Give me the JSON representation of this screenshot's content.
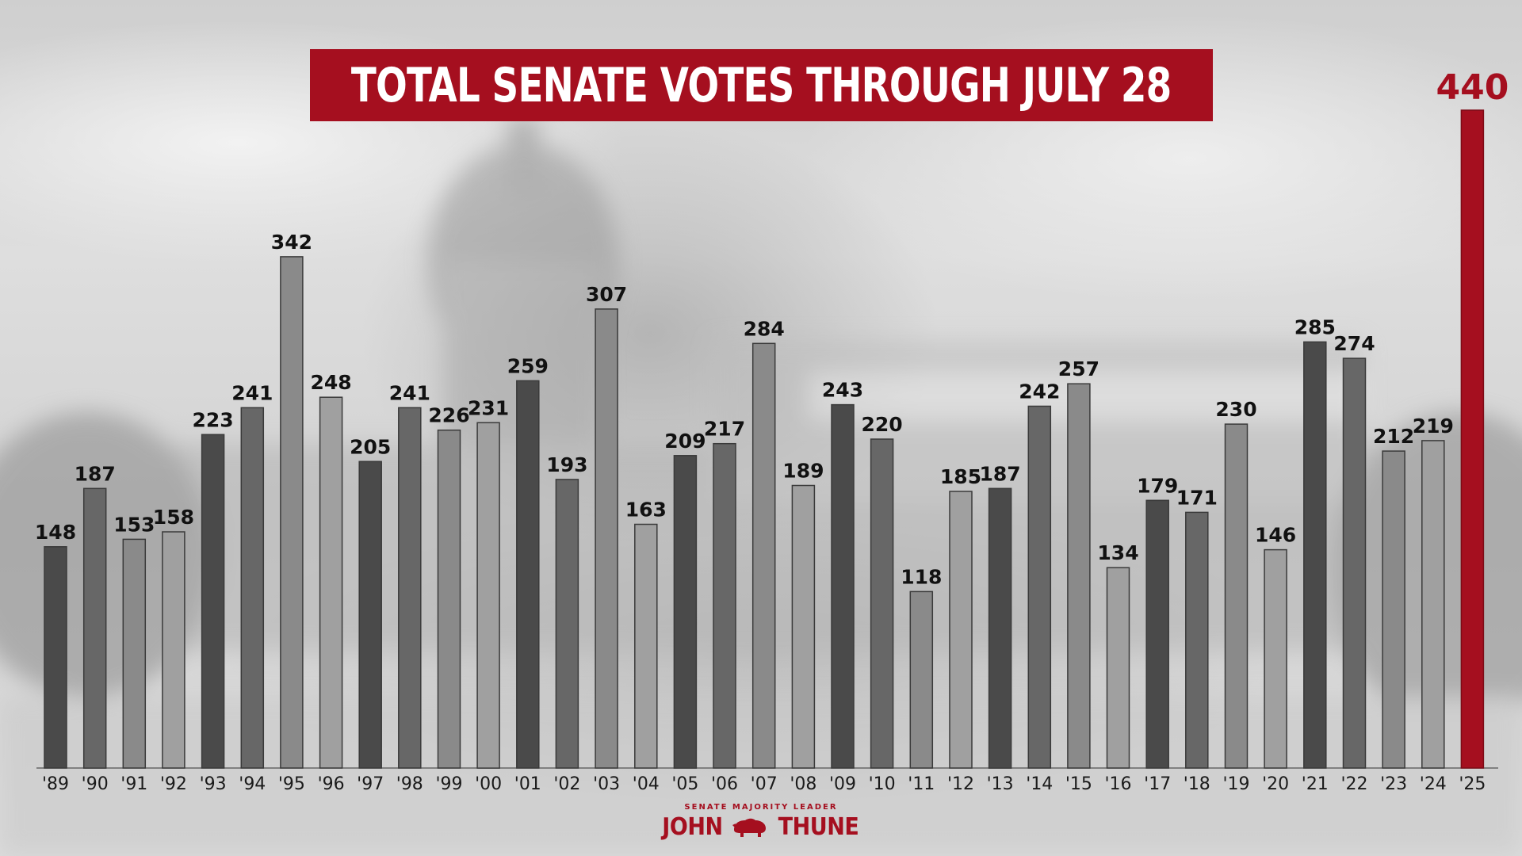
{
  "colors": {
    "accent": "#a50f1f",
    "bar_dark": "#4a4a4a",
    "bar_mid": "#676767",
    "bar_light": "#8a8a8a",
    "bar_lighter": "#a0a0a0"
  },
  "title": "TOTAL SENATE VOTES THROUGH JULY 28",
  "logo": {
    "subtitle": "SENATE MAJORITY LEADER",
    "first": "JOHN",
    "last": "THUNE",
    "icon": "bison-icon"
  },
  "chart_data": {
    "type": "bar",
    "title": "TOTAL SENATE VOTES THROUGH JULY 28",
    "xlabel": "",
    "ylabel": "",
    "ylim": [
      0,
      440
    ],
    "grid": false,
    "legend": "none",
    "categories": [
      "'89",
      "'90",
      "'91",
      "'92",
      "'93",
      "'94",
      "'95",
      "'96",
      "'97",
      "'98",
      "'99",
      "'00",
      "'01",
      "'02",
      "'03",
      "'04",
      "'05",
      "'06",
      "'07",
      "'08",
      "'09",
      "'10",
      "'11",
      "'12",
      "'13",
      "'14",
      "'15",
      "'16",
      "'17",
      "'18",
      "'19",
      "'20",
      "'21",
      "'22",
      "'23",
      "'24",
      "'25"
    ],
    "values": [
      148,
      187,
      153,
      158,
      223,
      241,
      342,
      248,
      205,
      241,
      226,
      231,
      259,
      193,
      307,
      163,
      209,
      217,
      284,
      189,
      243,
      220,
      118,
      185,
      187,
      242,
      257,
      134,
      179,
      171,
      230,
      146,
      285,
      274,
      212,
      219,
      440
    ],
    "shades": [
      "dark",
      "mid",
      "light",
      "lighter",
      "dark",
      "mid",
      "light",
      "lighter",
      "dark",
      "mid",
      "light",
      "lighter",
      "dark",
      "mid",
      "light",
      "lighter",
      "dark",
      "mid",
      "light",
      "lighter",
      "dark",
      "mid",
      "light",
      "lighter",
      "dark",
      "mid",
      "light",
      "lighter",
      "dark",
      "mid",
      "light",
      "lighter",
      "dark",
      "mid",
      "light",
      "lighter",
      "accent"
    ],
    "highlight_index": 36
  }
}
